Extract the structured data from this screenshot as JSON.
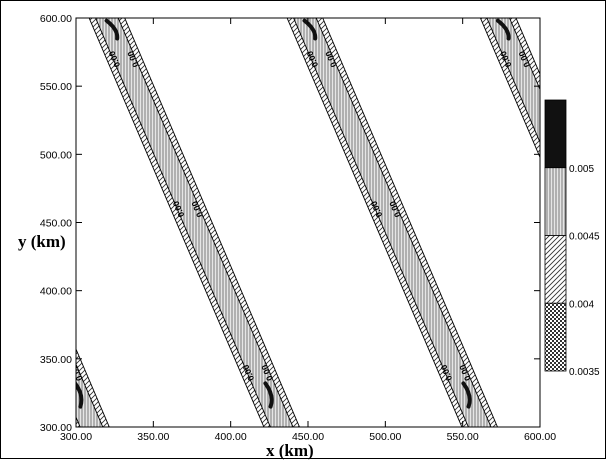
{
  "chart_data": {
    "type": "heatmap",
    "xlabel": "x (km)",
    "ylabel": "y (km)",
    "xlim": [
      300,
      600
    ],
    "ylim": [
      300,
      600
    ],
    "x_ticks": [
      "300.00",
      "350.00",
      "400.00",
      "450.00",
      "500.00",
      "550.00",
      "600.00"
    ],
    "y_ticks": [
      "300.00",
      "350.00",
      "400.00",
      "450.00",
      "500.00",
      "550.00",
      "600.00"
    ],
    "contour_label": "0.00",
    "bands": [
      {
        "x_at_y300": 310,
        "x_at_y600": 197
      },
      {
        "x_at_y300": 433,
        "x_at_y600": 320
      },
      {
        "x_at_y300": 561,
        "x_at_y600": 448
      },
      {
        "x_at_y300": 686,
        "x_at_y600": 573
      }
    ],
    "band_width_km": 23,
    "colorbar": {
      "levels": [
        "0.005",
        "0.0045",
        "0.004",
        "0.0035"
      ],
      "segments": [
        {
          "from": 0.005,
          "to": 0.0055,
          "pattern": "solid-black"
        },
        {
          "from": 0.0045,
          "to": 0.005,
          "pattern": "vertical-lines"
        },
        {
          "from": 0.004,
          "to": 0.0045,
          "pattern": "diagonal-lines"
        },
        {
          "from": 0.0035,
          "to": 0.004,
          "pattern": "checker"
        }
      ]
    },
    "colors": {
      "background": "#ffffff",
      "axis": "#000000",
      "fill_dark": "#111111",
      "fill_mid": "#bdbdbd"
    }
  }
}
